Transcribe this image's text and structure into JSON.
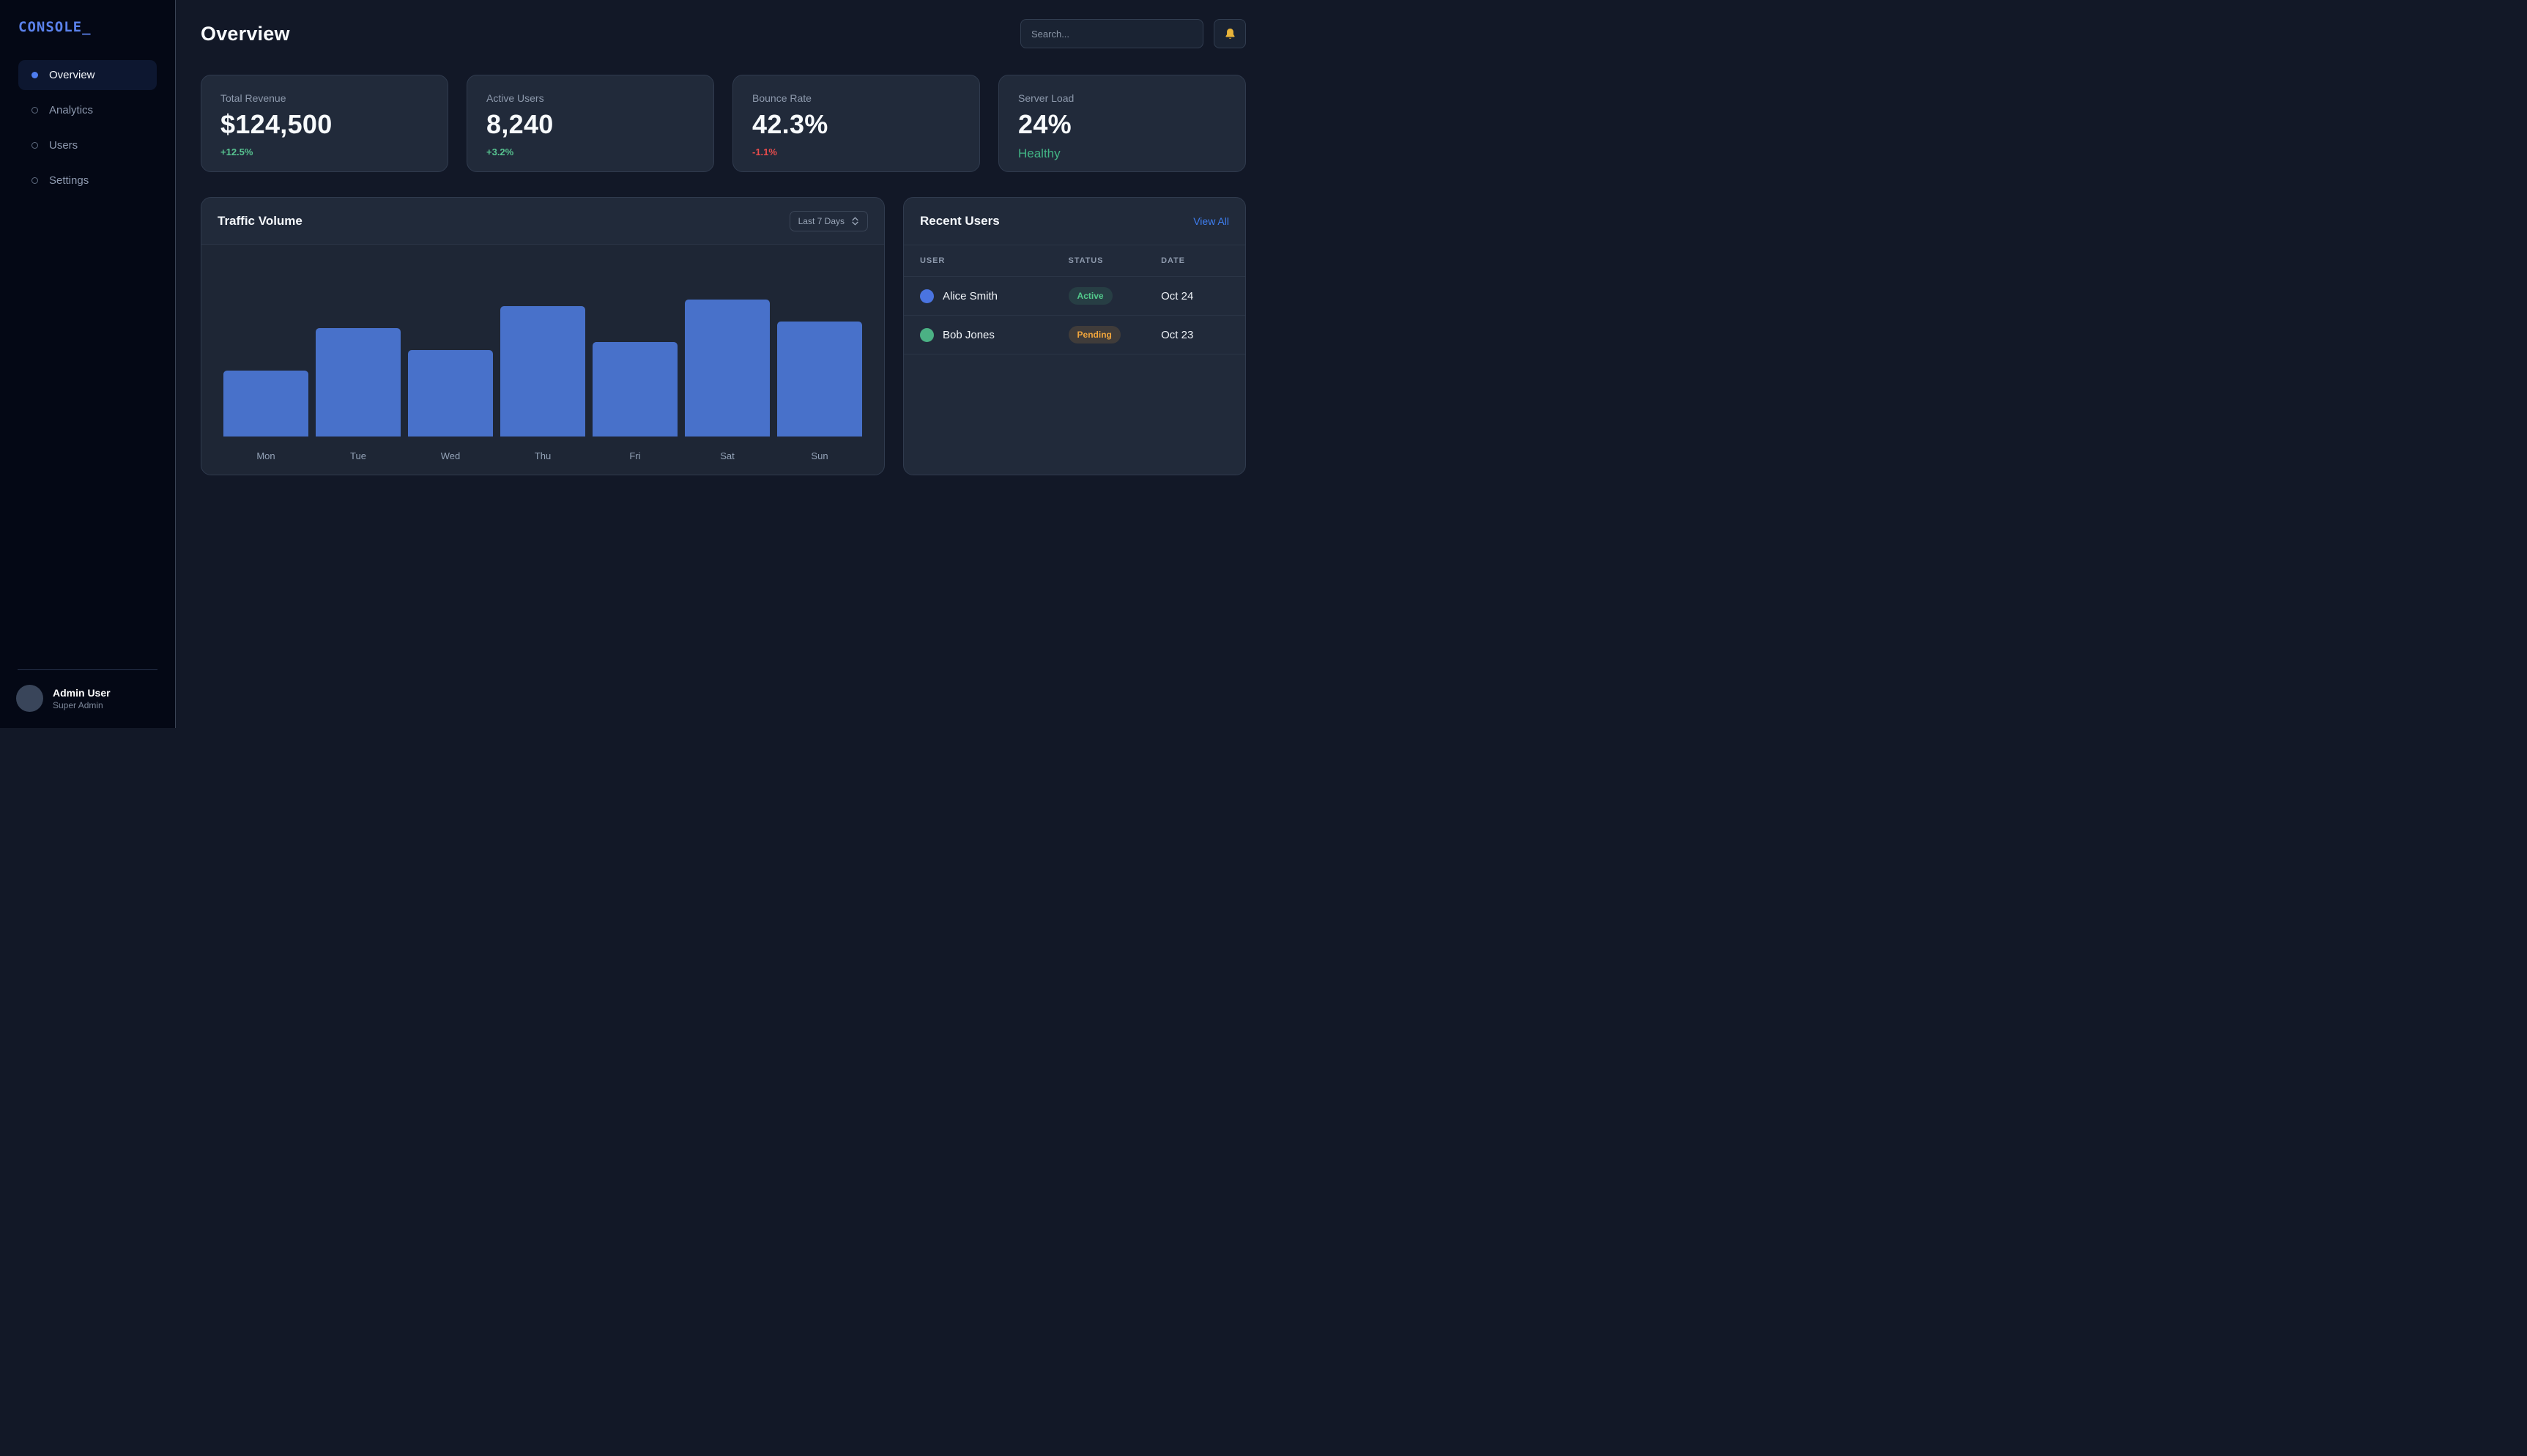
{
  "app": {
    "logo": "CONSOLE_"
  },
  "sidebar": {
    "items": [
      {
        "label": "Overview",
        "active": true
      },
      {
        "label": "Analytics",
        "active": false
      },
      {
        "label": "Users",
        "active": false
      },
      {
        "label": "Settings",
        "active": false
      }
    ],
    "user": {
      "name": "Admin User",
      "role": "Super Admin"
    }
  },
  "header": {
    "title": "Overview",
    "search_placeholder": "Search...",
    "notification_icon": "bell-icon"
  },
  "stats": [
    {
      "label": "Total Revenue",
      "value": "$124,500",
      "delta": "+12.5%",
      "delta_type": "up"
    },
    {
      "label": "Active Users",
      "value": "8,240",
      "delta": "+3.2%",
      "delta_type": "up"
    },
    {
      "label": "Bounce Rate",
      "value": "42.3%",
      "delta": "-1.1%",
      "delta_type": "down"
    },
    {
      "label": "Server Load",
      "value": "24%",
      "delta": "Healthy",
      "delta_type": "healthy"
    }
  ],
  "traffic": {
    "title": "Traffic Volume",
    "range_selected": "Last 7 Days"
  },
  "chart_data": {
    "type": "bar",
    "title": "Traffic Volume",
    "categories": [
      "Mon",
      "Tue",
      "Wed",
      "Thu",
      "Fri",
      "Sat",
      "Sun"
    ],
    "values": [
      48,
      79,
      63,
      95,
      69,
      100,
      84
    ],
    "value_unit": "relative height, % of max (no axis labels shown in chart)",
    "xlabel": "",
    "ylabel": "",
    "ylim": [
      0,
      100
    ],
    "grid": false,
    "legend": "none",
    "bar_color": "#4871ca"
  },
  "recent_users": {
    "title": "Recent Users",
    "view_all": "View All",
    "columns": [
      "USER",
      "STATUS",
      "DATE"
    ],
    "rows": [
      {
        "name": "Alice Smith",
        "status": "Active",
        "date": "Oct 24",
        "avatar_color": "#4a74e0"
      },
      {
        "name": "Bob Jones",
        "status": "Pending",
        "date": "Oct 23",
        "avatar_color": "#4bb184"
      }
    ]
  },
  "colors": {
    "sidebar_bg": "#040815",
    "main_bg": "#121827",
    "card_bg": "#212a3a",
    "accent_blue": "#5b82ec",
    "link_blue": "#3e7ef0",
    "bar_blue": "#4871ca",
    "positive_green": "#57c390",
    "healthy_green": "#42b585",
    "negative_red": "#e84c4c",
    "pending_amber": "#f2a63c",
    "bell_gold": "#e8b43a"
  }
}
